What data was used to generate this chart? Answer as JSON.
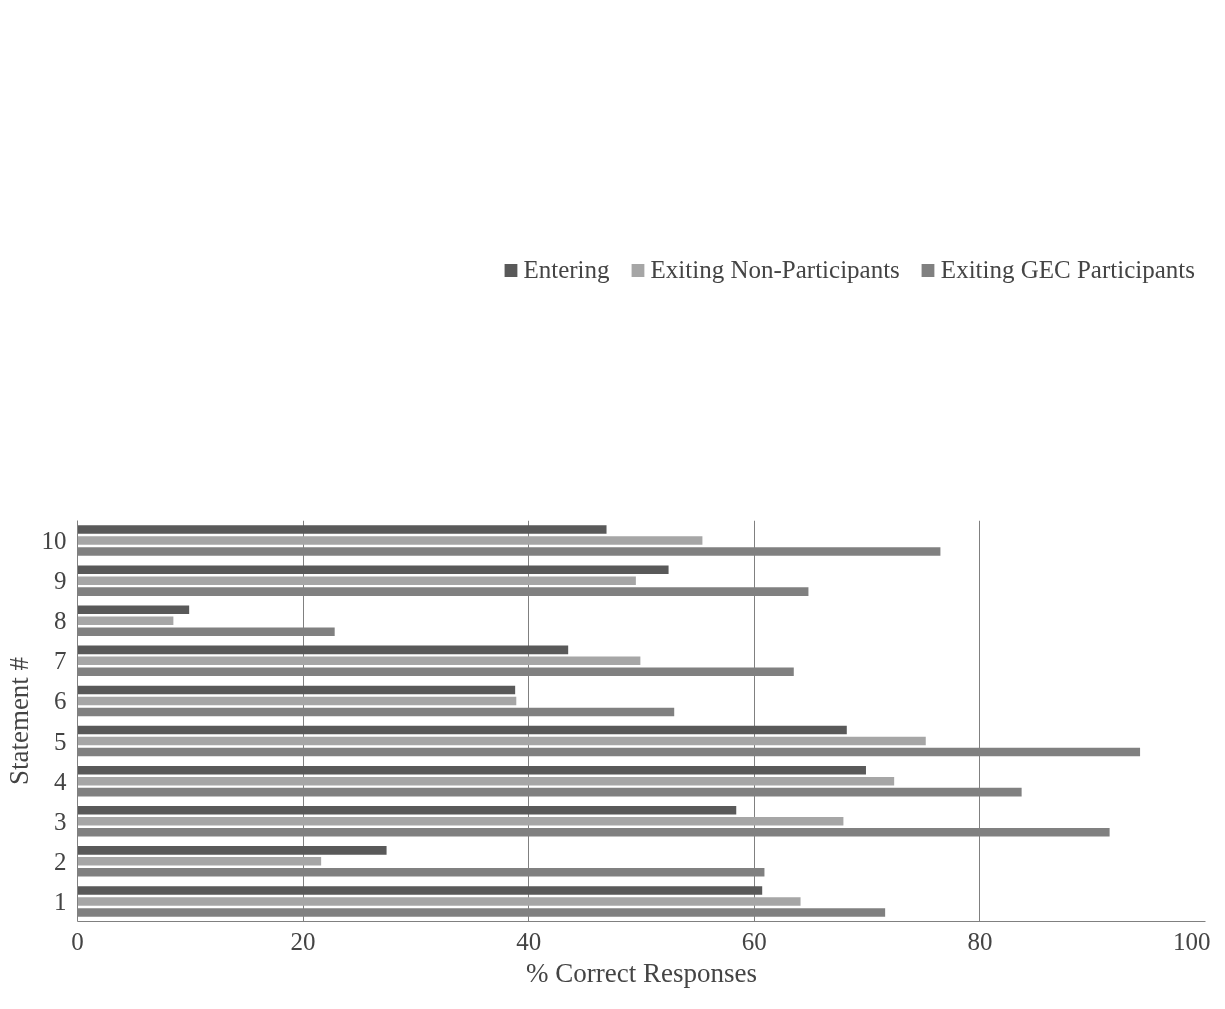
{
  "chart_data": {
    "type": "bar",
    "orientation": "horizontal",
    "xlabel": "% Correct Responses",
    "ylabel": "Statement #",
    "categories": [
      "10",
      "9",
      "8",
      "7",
      "6",
      "5",
      "4",
      "3",
      "2",
      "1"
    ],
    "series": [
      {
        "name": "Entering",
        "color": "#595959",
        "values": [
          46.9,
          52.4,
          9.9,
          43.5,
          38.8,
          68.2,
          69.9,
          58.4,
          27.4,
          60.7
        ]
      },
      {
        "name": "Exiting Non-Participants",
        "color": "#a6a6a6",
        "values": [
          55.4,
          49.5,
          8.5,
          49.9,
          38.9,
          75.2,
          72.4,
          67.9,
          21.6,
          64.1
        ]
      },
      {
        "name": "Exiting GEC Participants",
        "color": "#808080",
        "values": [
          76.5,
          64.8,
          22.8,
          63.5,
          52.9,
          94.2,
          83.7,
          91.5,
          60.9,
          71.6
        ]
      }
    ],
    "xlim": [
      0,
      100
    ],
    "xticks": [
      0,
      20,
      40,
      60,
      80,
      100
    ],
    "grid": "x",
    "legend": "top"
  }
}
